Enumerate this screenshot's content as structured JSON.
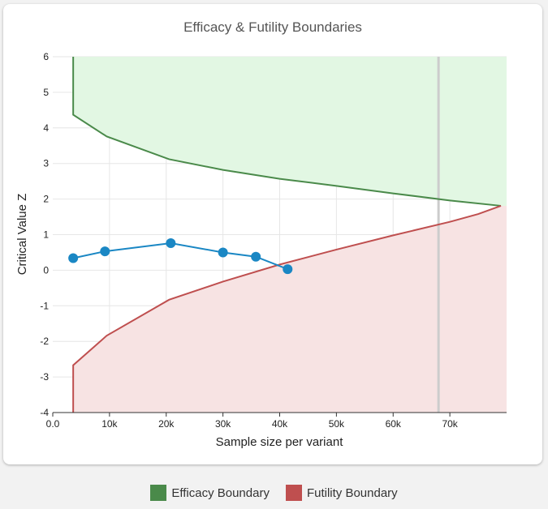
{
  "chart_data": {
    "type": "line",
    "title": "Efficacy & Futility Boundaries",
    "xlabel": "Sample size per variant",
    "ylabel": "Critical Value Z",
    "xlim": [
      0,
      80000
    ],
    "ylim": [
      -4,
      6
    ],
    "x_ticks": [
      {
        "value": 0,
        "label": "0.0"
      },
      {
        "value": 10000,
        "label": "10k"
      },
      {
        "value": 20000,
        "label": "20k"
      },
      {
        "value": 30000,
        "label": "30k"
      },
      {
        "value": 40000,
        "label": "40k"
      },
      {
        "value": 50000,
        "label": "50k"
      },
      {
        "value": 60000,
        "label": "60k"
      },
      {
        "value": 70000,
        "label": "70k"
      }
    ],
    "y_ticks": [
      {
        "value": 6,
        "label": "6"
      },
      {
        "value": 5,
        "label": "5"
      },
      {
        "value": 4,
        "label": "4"
      },
      {
        "value": 3,
        "label": "3"
      },
      {
        "value": 2,
        "label": "2"
      },
      {
        "value": 1,
        "label": "1"
      },
      {
        "value": 0,
        "label": "0"
      },
      {
        "value": -1,
        "label": "-1"
      },
      {
        "value": -2,
        "label": "-2"
      },
      {
        "value": -3,
        "label": "-3"
      },
      {
        "value": -4,
        "label": "-4"
      }
    ],
    "grid": true,
    "legend_position": "bottom",
    "series": [
      {
        "name": "Efficacy Boundary",
        "color": "#4a8a4a",
        "fill": "#e2f7e3",
        "x": [
          3600,
          3600,
          9500,
          20500,
          30000,
          40000,
          50000,
          60000,
          70000,
          79000
        ],
        "y": [
          6,
          4.37,
          3.76,
          3.12,
          2.82,
          2.57,
          2.37,
          2.16,
          1.96,
          1.81
        ]
      },
      {
        "name": "Futility Boundary",
        "color": "#bf4f4f",
        "fill": "#f7e3e3",
        "x": [
          3600,
          3600,
          9500,
          20500,
          30000,
          40000,
          50000,
          60000,
          70000,
          75000,
          79000
        ],
        "y": [
          -4,
          -2.67,
          -1.84,
          -0.83,
          -0.32,
          0.16,
          0.58,
          0.98,
          1.36,
          1.58,
          1.81
        ]
      },
      {
        "color": "#1a87c4",
        "x": [
          3600,
          9200,
          20800,
          30000,
          35800,
          41400
        ],
        "y": [
          0.34,
          0.53,
          0.76,
          0.5,
          0.38,
          0.03
        ]
      }
    ],
    "reference_line": {
      "x": 68000,
      "color": "#cccccc"
    }
  }
}
